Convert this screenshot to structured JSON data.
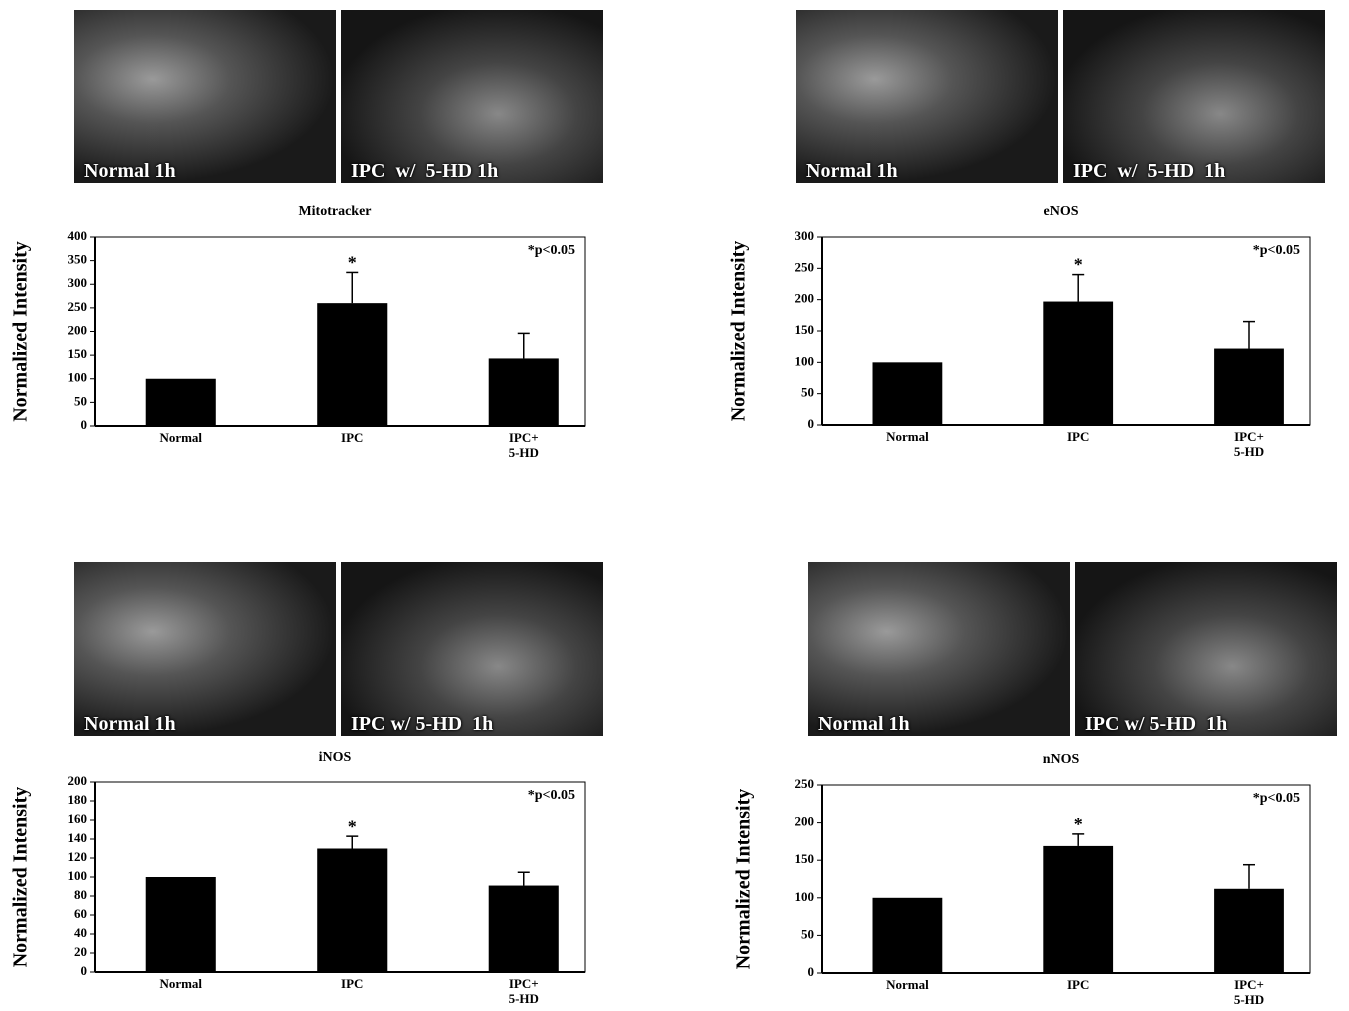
{
  "chart_data": [
    {
      "type": "bar",
      "title": "Mitotracker",
      "image_labels": [
        "Normal 1h",
        "IPC  w/  5-HD 1h"
      ],
      "y_label": "Normalized Intensity",
      "categories": [
        "Normal",
        "IPC",
        "IPC+\n5-HD"
      ],
      "values": [
        100,
        260,
        143
      ],
      "errors": [
        null,
        65,
        53
      ],
      "color": "#000000",
      "ylim": [
        0,
        400
      ],
      "yticks": [
        0,
        50,
        100,
        150,
        200,
        250,
        300,
        350,
        400
      ],
      "star": "*",
      "note": "*p<0.05",
      "grid": false
    },
    {
      "type": "bar",
      "title": "eNOS",
      "image_labels": [
        "Normal 1h",
        "IPC  w/  5-HD  1h"
      ],
      "y_label": "Normalized Intensity",
      "categories": [
        "Normal",
        "IPC",
        "IPC+\n5-HD"
      ],
      "values": [
        100,
        197,
        122
      ],
      "errors": [
        null,
        43,
        43
      ],
      "color": "#000000",
      "ylim": [
        0,
        300
      ],
      "yticks": [
        0,
        50,
        100,
        150,
        200,
        250,
        300
      ],
      "star": "*",
      "note": "*p<0.05",
      "grid": false
    },
    {
      "type": "bar",
      "title": "iNOS",
      "image_labels": [
        "Normal 1h",
        "IPC w/ 5-HD  1h"
      ],
      "y_label": "Normalized Intensity",
      "categories": [
        "Normal",
        "IPC",
        "IPC+\n5-HD"
      ],
      "values": [
        100,
        130,
        91
      ],
      "errors": [
        null,
        13,
        14
      ],
      "color": "#000000",
      "ylim": [
        0,
        200
      ],
      "yticks": [
        0,
        20,
        40,
        60,
        80,
        100,
        120,
        140,
        160,
        180,
        200
      ],
      "star": "*",
      "note": "*p<0.05",
      "grid": false
    },
    {
      "type": "bar",
      "title": "nNOS",
      "image_labels": [
        "Normal 1h",
        "IPC w/ 5-HD  1h"
      ],
      "y_label": "Normalized Intensity",
      "categories": [
        "Normal",
        "IPC",
        "IPC+\n5-HD"
      ],
      "values": [
        100,
        169,
        112
      ],
      "errors": [
        null,
        16,
        32
      ],
      "color": "#000000",
      "ylim": [
        0,
        250
      ],
      "yticks": [
        0,
        50,
        100,
        150,
        200,
        250
      ],
      "star": "*",
      "note": "*p<0.05",
      "grid": false
    }
  ]
}
